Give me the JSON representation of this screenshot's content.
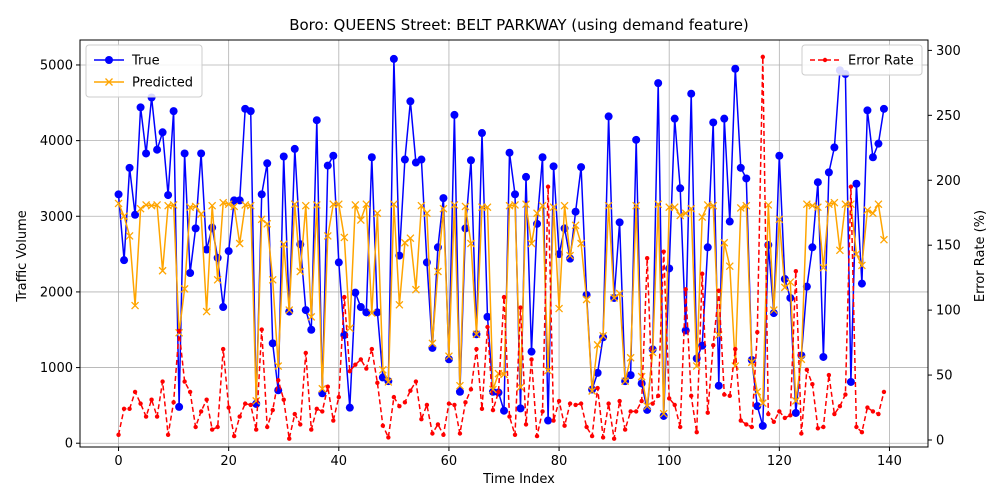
{
  "chart_data": {
    "type": "line",
    "title": "Boro: QUEENS Street: BELT PARKWAY (using demand feature)",
    "xlabel": "Time Index",
    "ylabel_left": "Traffic Volume",
    "ylabel_right": "Error Rate (%)",
    "xlim": [
      -7,
      147
    ],
    "ylim_left": [
      -50,
      5330
    ],
    "ylim_right": [
      -5.4,
      308
    ],
    "x_ticks": [
      0,
      20,
      40,
      60,
      80,
      100,
      120,
      140
    ],
    "y_ticks_left": [
      0,
      1000,
      2000,
      3000,
      4000,
      5000
    ],
    "y_ticks_right": [
      0,
      50,
      100,
      150,
      200,
      250,
      300
    ],
    "grid": true,
    "legend_left": "upper-left",
    "legend_right": "upper-right",
    "series": [
      {
        "name": "True",
        "axis": "left",
        "color": "#0000ff",
        "marker": "circle",
        "values": [
          3290,
          2420,
          3640,
          3020,
          4440,
          3830,
          4570,
          3880,
          4110,
          3280,
          4390,
          480,
          3830,
          2250,
          2840,
          3830,
          2560,
          2850,
          2450,
          1800,
          2540,
          3210,
          3210,
          4420,
          4390,
          520,
          3290,
          3700,
          1320,
          700,
          3790,
          1740,
          3890,
          2630,
          1760,
          1500,
          4270,
          660,
          3670,
          3800,
          2390,
          1430,
          470,
          1990,
          1800,
          1730,
          3780,
          1730,
          870,
          820,
          5080,
          2480,
          3750,
          4520,
          3710,
          3750,
          2390,
          1260,
          2590,
          3240,
          1110,
          4340,
          680,
          2840,
          3740,
          1440,
          4100,
          1670,
          680,
          670,
          430,
          3840,
          3290,
          460,
          3520,
          1210,
          2900,
          3780,
          300,
          3660,
          2500,
          2840,
          2440,
          3060,
          3650,
          1960,
          710,
          930,
          1400,
          4320,
          1920,
          2920,
          820,
          900,
          4010,
          790,
          440,
          1240,
          4760,
          360,
          2310,
          4290,
          3370,
          1490,
          4620,
          1120,
          1290,
          2590,
          4240,
          760,
          4290,
          2930,
          4950,
          3640,
          3500,
          1100,
          490,
          230,
          2620,
          1720,
          3800,
          2170,
          1920,
          400,
          1160,
          2070,
          2590,
          3450,
          1140,
          3580,
          3910,
          4930,
          4880,
          810,
          3430,
          2110,
          4400,
          3780,
          3960,
          4420
        ]
      },
      {
        "name": "Predicted",
        "axis": "left",
        "color": "#ffa500",
        "marker": "x",
        "values": [
          3170,
          3000,
          2740,
          1820,
          3100,
          3150,
          3140,
          3150,
          2280,
          3140,
          3150,
          1460,
          2040,
          3120,
          3130,
          3030,
          1740,
          3140,
          2160,
          3180,
          3160,
          3130,
          2640,
          3150,
          3140,
          560,
          2960,
          2900,
          2160,
          1020,
          2630,
          1760,
          3160,
          2270,
          3140,
          1670,
          3150,
          720,
          2740,
          3160,
          3160,
          2720,
          1520,
          3150,
          2950,
          3160,
          1720,
          3040,
          970,
          810,
          3160,
          1830,
          2650,
          2710,
          2030,
          3140,
          3040,
          1320,
          2270,
          3100,
          1150,
          3150,
          760,
          3130,
          2640,
          1440,
          3120,
          3120,
          710,
          920,
          910,
          3140,
          3150,
          740,
          3160,
          2640,
          3040,
          3140,
          960,
          3120,
          1780,
          3140,
          2480,
          2880,
          2640,
          1900,
          690,
          1300,
          1420,
          3140,
          1920,
          1980,
          820,
          1130,
          3140,
          880,
          490,
          1200,
          3160,
          390,
          3120,
          3120,
          3010,
          3040,
          3100,
          1020,
          2990,
          3150,
          3140,
          1430,
          2650,
          2340,
          1020,
          3110,
          3140,
          1070,
          680,
          530,
          3150,
          1760,
          2960,
          2060,
          2130,
          560,
          1110,
          3160,
          3140,
          3120,
          2320,
          3160,
          3180,
          2550,
          3160,
          3160,
          2500,
          2350,
          3080,
          3040,
          3160,
          2690
        ]
      },
      {
        "name": "Error Rate",
        "axis": "right",
        "color": "#ff0000",
        "marker": "dot",
        "dashed": true,
        "values": [
          4,
          24,
          24,
          37,
          28,
          18,
          31,
          18,
          45,
          4,
          29,
          84,
          45,
          37,
          10,
          22,
          31,
          8,
          10,
          70,
          25,
          3,
          18,
          28,
          27,
          8,
          85,
          10,
          23,
          46,
          31,
          1,
          20,
          12,
          67,
          8,
          24,
          22,
          41,
          15,
          33,
          110,
          53,
          58,
          62,
          55,
          70,
          44,
          11,
          2,
          33,
          26,
          29,
          38,
          45,
          16,
          27,
          5,
          12,
          4,
          28,
          27,
          5,
          29,
          39,
          70,
          24,
          87,
          23,
          37,
          110,
          18,
          4,
          102,
          12,
          62,
          3,
          22,
          195,
          15,
          30,
          11,
          28,
          27,
          28,
          10,
          3,
          40,
          2,
          28,
          1,
          30,
          8,
          22,
          22,
          30,
          140,
          28,
          34,
          145,
          32,
          27,
          10,
          116,
          34,
          6,
          128,
          21,
          73,
          115,
          35,
          34,
          70,
          15,
          12,
          10,
          83,
          295,
          20,
          14,
          22,
          17,
          19,
          130,
          5,
          54,
          43,
          9,
          10,
          50,
          20,
          26,
          35,
          195,
          10,
          6,
          25,
          22,
          20,
          37
        ]
      }
    ]
  }
}
